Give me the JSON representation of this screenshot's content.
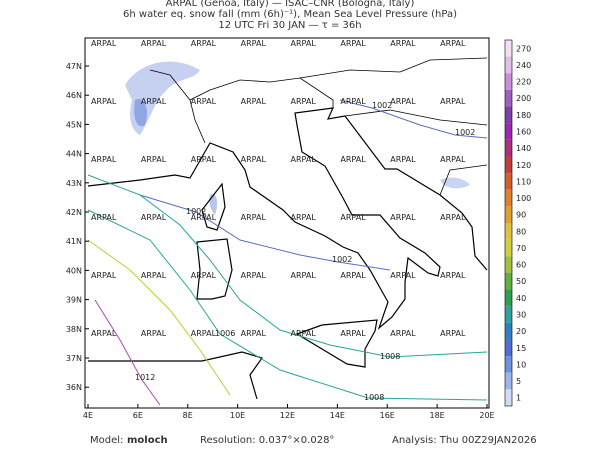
{
  "header": {
    "lines": [
      "ARPAL (Genoa, Italy)  —  ISAC–CNR (Bologna, Italy)",
      "6h water eq. snow fall (mm (6h)⁻¹), Mean Sea Level Pressure (hPa)",
      "12 UTC Fri 30 JAN  —  τ = 36h"
    ]
  },
  "map": {
    "xticks": [
      "4E",
      "6E",
      "8E",
      "10E",
      "12E",
      "14E",
      "16E",
      "18E",
      "20E"
    ],
    "yticks": [
      "47N",
      "46N",
      "45N",
      "44N",
      "43N",
      "42N",
      "41N",
      "40N",
      "39N",
      "38N",
      "37N",
      "36N"
    ],
    "isobar_labels": [
      "1002",
      "1002",
      "1002",
      "1002",
      "1006",
      "1008",
      "1008",
      "1012"
    ],
    "watermark": "ARPAL"
  },
  "colorbar": {
    "labels": [
      "270",
      "240",
      "220",
      "200",
      "180",
      "160",
      "140",
      "120",
      "110",
      "100",
      "90",
      "80",
      "70",
      "60",
      "50",
      "40",
      "30",
      "20",
      "15",
      "10",
      "5",
      "1"
    ],
    "colors": [
      "#f0e0f0",
      "#e0c0e8",
      "#c890d8",
      "#a060c0",
      "#8040a8",
      "#9c27b0",
      "#b03080",
      "#c04040",
      "#d06030",
      "#e08030",
      "#e0a030",
      "#e0c040",
      "#d0d040",
      "#a0c040",
      "#60b040",
      "#30a050",
      "#30a0a0",
      "#3080c0",
      "#5070d0",
      "#7090e0",
      "#a0b4ec",
      "#d0dcf6"
    ]
  },
  "footer": {
    "model_label": "Model:",
    "model": "moloch",
    "resolution": "Resolution: 0.037°×0.028°",
    "analysis": "Analysis: Thu 00Z29JAN2026"
  }
}
